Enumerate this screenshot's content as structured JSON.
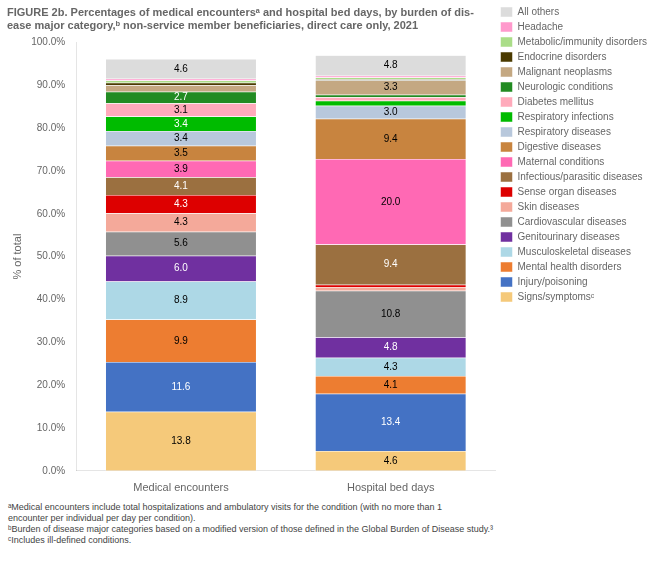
{
  "chart_data": {
    "type": "bar",
    "stacked": true,
    "title": [
      "FIGURE 2b. Percentages of medical encountersᵃ and hospital bed days, by burden of dis-",
      "ease major category,ᵇ non-service member beneficiaries, direct care only, 2021"
    ],
    "y_label": "% of total",
    "categories": [
      "Medical encounters",
      "Hospital bed days"
    ],
    "ylim": [
      0,
      100
    ],
    "yticks": [
      {
        "value": 0,
        "label": "0.0%"
      },
      {
        "value": 10,
        "label": "10.0%"
      },
      {
        "value": 20,
        "label": "20.0%"
      },
      {
        "value": 30,
        "label": "30.0%"
      },
      {
        "value": 40,
        "label": "40.0%"
      },
      {
        "value": 50,
        "label": "50.0%"
      },
      {
        "value": 60,
        "label": "60.0%"
      },
      {
        "value": 70,
        "label": "70.0%"
      },
      {
        "value": 80,
        "label": "80.0%"
      },
      {
        "value": 90,
        "label": "90.0%"
      },
      {
        "value": 100,
        "label": "100.0%"
      }
    ],
    "grid": false,
    "legend": "right",
    "data_labels": true,
    "series": [
      {
        "name": "Signs/symptomsᶜ",
        "color": "#F5C97A",
        "values": [
          13.8,
          4.6
        ],
        "value_labels": [
          "13.8",
          "4.6"
        ]
      },
      {
        "name": "Injury/poisoning",
        "color": "#4472C4",
        "values": [
          11.6,
          13.4
        ],
        "value_labels": [
          "11.6",
          "13.4"
        ]
      },
      {
        "name": "Mental health disorders",
        "color": "#ED7D31",
        "values": [
          9.9,
          4.1
        ],
        "value_labels": [
          "9.9",
          "4.1"
        ]
      },
      {
        "name": "Musculoskeletal diseases",
        "color": "#ADD8E6",
        "values": [
          8.9,
          4.3
        ],
        "value_labels": [
          "8.9",
          "4.3"
        ]
      },
      {
        "name": "Genitourinary diseases",
        "color": "#7030A0",
        "values": [
          6.0,
          4.8
        ],
        "value_labels": [
          "6.0",
          "4.8"
        ]
      },
      {
        "name": "Cardiovascular diseases",
        "color": "#909090",
        "values": [
          5.6,
          10.8
        ],
        "value_labels": [
          "5.6",
          "10.8"
        ]
      },
      {
        "name": "Skin diseases",
        "color": "#F4A99A",
        "values": [
          4.3,
          0.9
        ],
        "value_labels": [
          "4.3",
          null
        ]
      },
      {
        "name": "Sense organ diseases",
        "color": "#DD0000",
        "values": [
          4.3,
          0.5
        ],
        "value_labels": [
          "4.3",
          null
        ]
      },
      {
        "name": "Infectious/parasitic diseases",
        "color": "#9B7040",
        "values": [
          4.1,
          9.4
        ],
        "value_labels": [
          "4.1",
          "9.4"
        ]
      },
      {
        "name": "Maternal conditions",
        "color": "#FF69B4",
        "values": [
          3.9,
          20.0
        ],
        "value_labels": [
          "3.9",
          "20.0"
        ]
      },
      {
        "name": "Digestive diseases",
        "color": "#C8843F",
        "values": [
          3.5,
          9.4
        ],
        "value_labels": [
          "3.5",
          "9.4"
        ]
      },
      {
        "name": "Respiratory diseases",
        "color": "#B8C8DC",
        "values": [
          3.4,
          3.0
        ],
        "value_labels": [
          "3.4",
          "3.0"
        ]
      },
      {
        "name": "Respiratory infections",
        "color": "#00BB00",
        "values": [
          3.4,
          1.2
        ],
        "value_labels": [
          "3.4",
          null
        ]
      },
      {
        "name": "Diabetes mellitus",
        "color": "#FFAABB",
        "values": [
          3.1,
          0.8
        ],
        "value_labels": [
          "3.1",
          null
        ]
      },
      {
        "name": "Neurologic conditions",
        "color": "#228B22",
        "values": [
          2.7,
          0.6
        ],
        "value_labels": [
          "2.7",
          null
        ]
      },
      {
        "name": "Malignant neoplasms",
        "color": "#C4A882",
        "values": [
          1.5,
          3.3
        ],
        "value_labels": [
          null,
          "3.3"
        ]
      },
      {
        "name": "Endocrine disorders",
        "color": "#4A3A00",
        "values": [
          0.6,
          0.3
        ],
        "value_labels": [
          null,
          null
        ]
      },
      {
        "name": "Metabolic/immunity disorders",
        "color": "#AADD88",
        "values": [
          0.5,
          0.4
        ],
        "value_labels": [
          null,
          null
        ]
      },
      {
        "name": "Headache",
        "color": "#FF99CC",
        "values": [
          0.4,
          0.4
        ],
        "value_labels": [
          null,
          null
        ]
      },
      {
        "name": "All others",
        "color": "#DCDCDC",
        "values": [
          4.6,
          4.8
        ],
        "value_labels": [
          "4.6",
          "4.8"
        ]
      }
    ],
    "annotations": [
      "ᵃMedical encounters include total hospitalizations and ambulatory visits for the condition (with no more than 1",
      "encounter per individual per day per condition).",
      "ᵇBurden of disease major categories based on a modified version of those defined in the Global Burden of Disease study.³",
      "ᶜIncludes ill-defined conditions."
    ]
  }
}
